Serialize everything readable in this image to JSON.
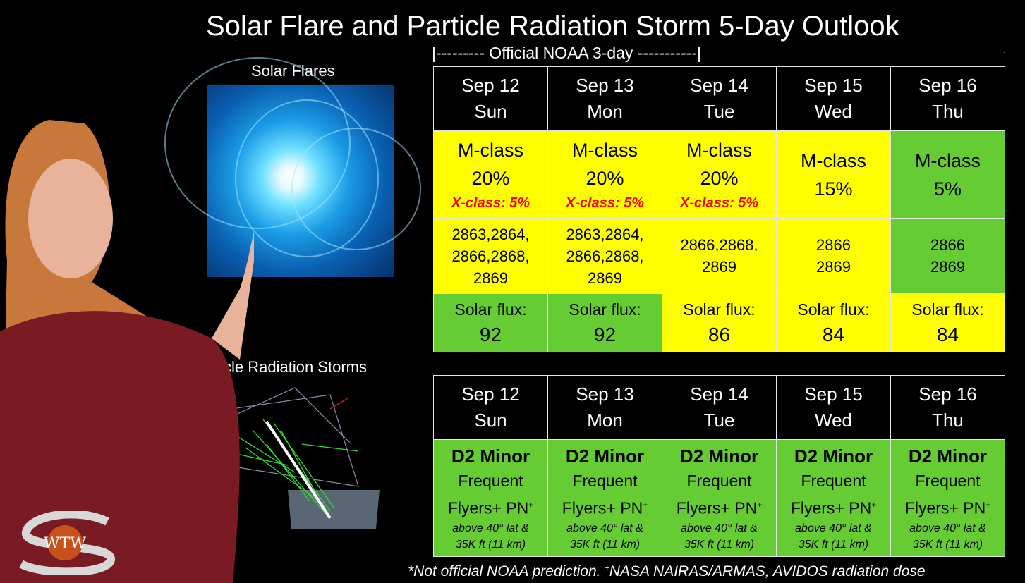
{
  "title": "Solar Flare and Particle Radiation Storm 5-Day Outlook",
  "subtitle": "|--------- Official NOAA 3-day -----------|",
  "labels": {
    "solar_flares": "Solar Flares",
    "particle_storms": "ticle Radiation Storms"
  },
  "flare_table": {
    "days": [
      {
        "date": "Sep 12",
        "dow": "Sun",
        "mclass": "M-class",
        "mpct": "20%",
        "xclass": "X-class: 5%",
        "regions": [
          "2863,2864,",
          "2866,2868,",
          "2869"
        ],
        "flux_label": "Solar flux:",
        "flux": "92",
        "row_color": "#ffff00",
        "flux_color": "#66cc33"
      },
      {
        "date": "Sep 13",
        "dow": "Mon",
        "mclass": "M-class",
        "mpct": "20%",
        "xclass": "X-class: 5%",
        "regions": [
          "2863,2864,",
          "2866,2868,",
          "2869"
        ],
        "flux_label": "Solar flux:",
        "flux": "92",
        "row_color": "#ffff00",
        "flux_color": "#66cc33"
      },
      {
        "date": "Sep 14",
        "dow": "Tue",
        "mclass": "M-class",
        "mpct": "20%",
        "xclass": "X-class: 5%",
        "regions": [
          "2866,2868,",
          "2869",
          ""
        ],
        "flux_label": "Solar flux:",
        "flux": "86",
        "row_color": "#ffff00",
        "flux_color": "#ffff00"
      },
      {
        "date": "Sep 15",
        "dow": "Wed",
        "mclass": "M-class",
        "mpct": "15%",
        "xclass": "",
        "regions": [
          "2866",
          "2869",
          ""
        ],
        "flux_label": "Solar flux:",
        "flux": "84",
        "row_color": "#ffff00",
        "flux_color": "#ffff00"
      },
      {
        "date": "Sep 16",
        "dow": "Thu",
        "mclass": "M-class",
        "mpct": "5%",
        "xclass": "",
        "regions": [
          "2866",
          "2869",
          ""
        ],
        "flux_label": "Solar flux:",
        "flux": "84",
        "row_color": "#66cc33",
        "flux_color": "#ffff00"
      }
    ]
  },
  "storm_table": {
    "days": [
      {
        "date": "Sep 12",
        "dow": "Sun",
        "level": "D2 Minor",
        "freq": "Frequent",
        "flyers": "Flyers+ PN",
        "sup": "+",
        "note1": "above 40° lat &",
        "note2": "35K ft (11 km)"
      },
      {
        "date": "Sep 13",
        "dow": "Mon",
        "level": "D2 Minor",
        "freq": "Frequent",
        "flyers": "Flyers+ PN",
        "sup": "+",
        "note1": "above 40° lat &",
        "note2": "35K ft (11 km)"
      },
      {
        "date": "Sep 14",
        "dow": "Tue",
        "level": "D2 Minor",
        "freq": "Frequent",
        "flyers": "Flyers+ PN",
        "sup": "+",
        "note1": "above 40° lat &",
        "note2": "35K ft (11 km)"
      },
      {
        "date": "Sep 15",
        "dow": "Wed",
        "level": "D2 Minor",
        "freq": "Frequent",
        "flyers": "Flyers+ PN",
        "sup": "+",
        "note1": "above 40° lat &",
        "note2": "35K ft (11 km)"
      },
      {
        "date": "Sep 16",
        "dow": "Thu",
        "level": "D2 Minor",
        "freq": "Frequent",
        "flyers": "Flyers+ PN",
        "sup": "+",
        "note1": "above 40° lat &",
        "note2": "35K ft (11 km)"
      }
    ]
  },
  "footnote": {
    "part1": "*Not official NOAA prediction.  ",
    "sup": "+",
    "part2": "NASA NAIRAS/ARMAS, AVIDOS radiation dose"
  },
  "logo_text": "WTW",
  "colors": {
    "yellow": "#ffff00",
    "green": "#66cc33",
    "xclass_red": "#ff0000"
  }
}
